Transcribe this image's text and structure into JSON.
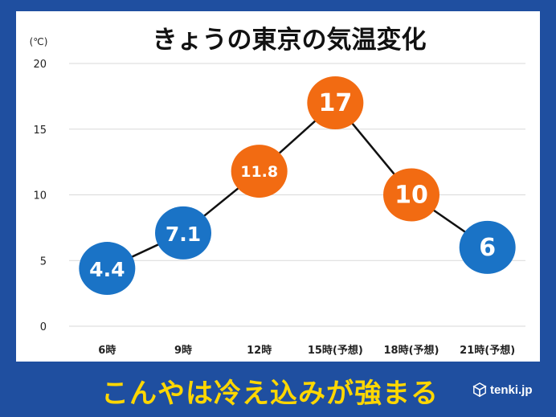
{
  "chart_data": {
    "type": "line",
    "title": "きょうの東京の気温変化",
    "unit_label": "(℃)",
    "categories": [
      "6時",
      "9時",
      "12時",
      "15時(予想)",
      "18時(予想)",
      "21時(予想)"
    ],
    "values": [
      4.4,
      7.1,
      11.8,
      17,
      10,
      6
    ],
    "point_labels": [
      "4.4",
      "7.1",
      "11.8",
      "17",
      "10",
      "6"
    ],
    "point_colors": [
      "#1a73c6",
      "#1a73c6",
      "#f26b12",
      "#f26b12",
      "#f26b12",
      "#1a73c6"
    ],
    "ylim": [
      0,
      20
    ],
    "yticks": [
      0,
      5,
      10,
      15,
      20
    ],
    "grid": true,
    "line_color": "#111111"
  },
  "footer": {
    "banner": "こんやは冷え込みが強まる",
    "brand": "tenki.jp",
    "brand_icon": "cube-logo-icon"
  },
  "colors": {
    "frame": "#1f4fa0",
    "banner_text": "#ffd700"
  }
}
